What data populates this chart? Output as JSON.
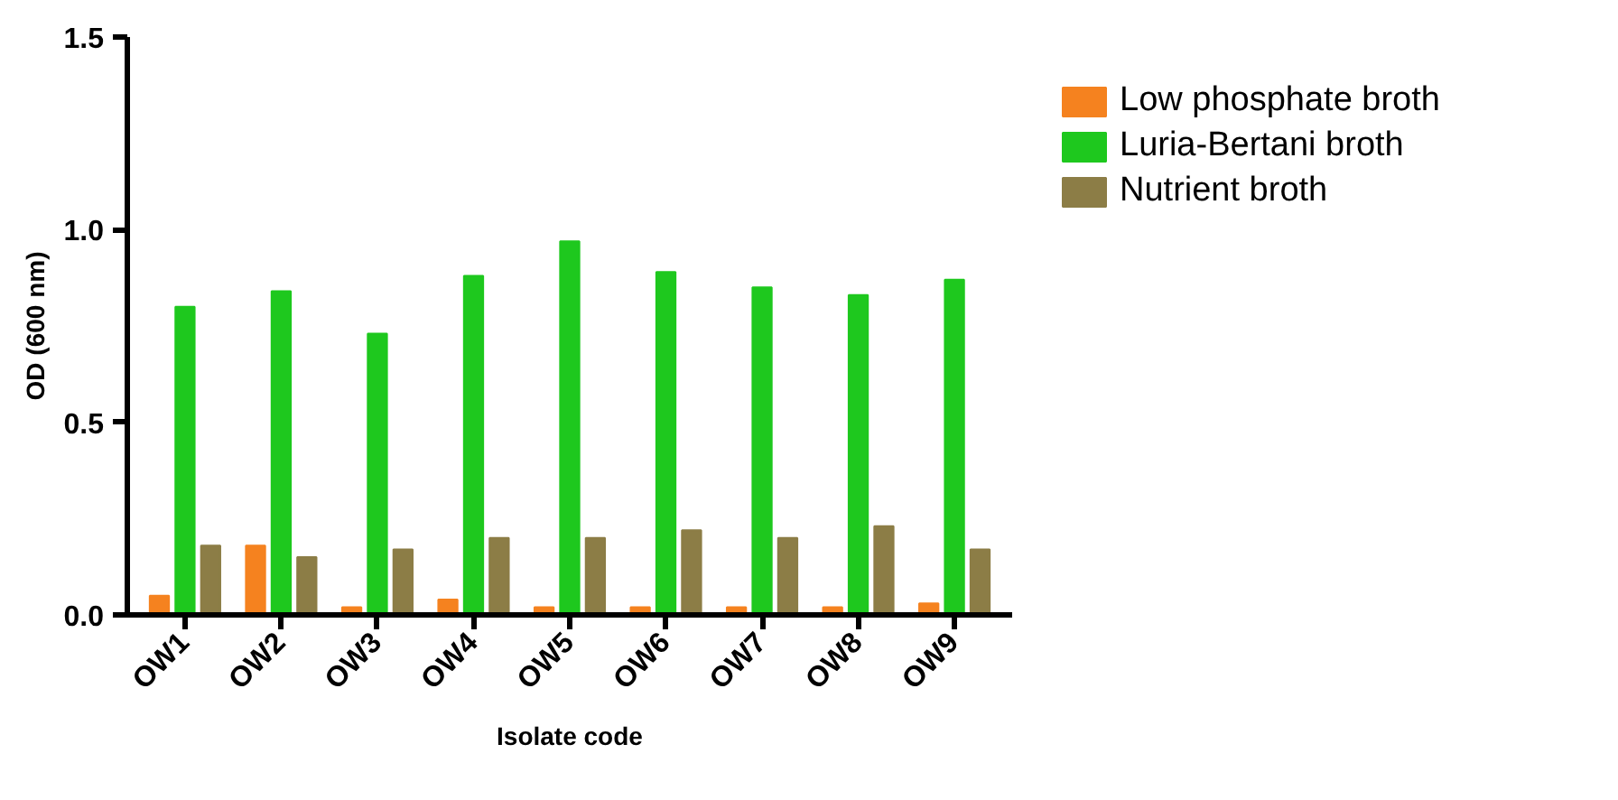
{
  "chart_data": {
    "type": "bar",
    "xlabel": "Isolate code",
    "ylabel": "OD (600 nm)",
    "categories": [
      "OW1",
      "OW2",
      "OW3",
      "OW4",
      "OW5",
      "OW6",
      "OW7",
      "OW8",
      "OW9"
    ],
    "series": [
      {
        "name": "Low phosphate broth",
        "color": "#f5821f",
        "values": [
          0.05,
          0.18,
          0.02,
          0.04,
          0.02,
          0.02,
          0.02,
          0.02,
          0.03
        ]
      },
      {
        "name": "Luria-Bertani broth",
        "color": "#1ec81e",
        "values": [
          0.8,
          0.84,
          0.73,
          0.88,
          0.97,
          0.89,
          0.85,
          0.83,
          0.87
        ]
      },
      {
        "name": "Nutrient broth",
        "color": "#8c7d46",
        "values": [
          0.18,
          0.15,
          0.17,
          0.2,
          0.2,
          0.22,
          0.2,
          0.23,
          0.17
        ]
      }
    ],
    "ylim": [
      0,
      1.5
    ],
    "yticks": [
      {
        "value": 0,
        "label": "0.0"
      },
      {
        "value": 0.5,
        "label": "0.5"
      },
      {
        "value": 1,
        "label": "1.0"
      },
      {
        "value": 1.5,
        "label": "1.5"
      }
    ],
    "grid": false,
    "legend": "top right"
  }
}
